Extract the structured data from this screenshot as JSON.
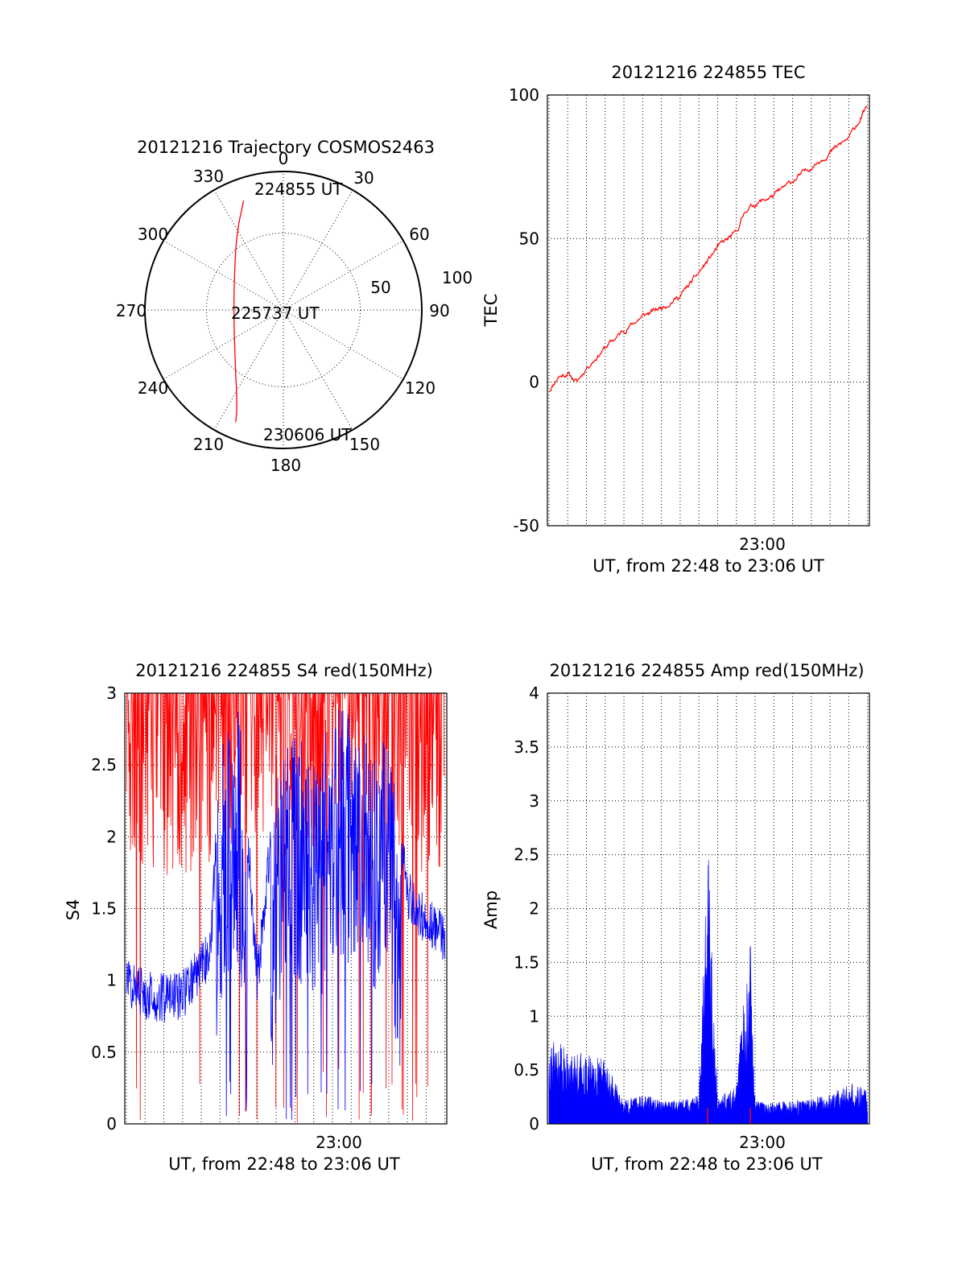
{
  "colors": {
    "red": "#ff0000",
    "blue": "#0000ff",
    "axis": "#000000",
    "background": "#ffffff"
  },
  "chart_data": [
    {
      "type": "polar",
      "title": "20121216 Trajectory COSMOS2463",
      "azimuth_labels": [
        "0",
        "30",
        "60",
        "90",
        "120",
        "150",
        "180",
        "210",
        "240",
        "270",
        "300",
        "330"
      ],
      "radial_tick_labels": [
        "50",
        "100"
      ],
      "annotations": [
        "224855 UT",
        "225737 UT",
        "230606 UT"
      ],
      "series": [
        {
          "color": "red",
          "points": [
            {
              "az": 340,
              "r": 84
            },
            {
              "az": 328,
              "r": 64
            },
            {
              "az": 300,
              "r": 41
            },
            {
              "az": 264,
              "r": 36
            },
            {
              "az": 222,
              "r": 52
            },
            {
              "az": 206,
              "r": 76
            },
            {
              "az": 203,
              "r": 88
            }
          ]
        }
      ]
    },
    {
      "type": "line",
      "title": "20121216 224855 TEC",
      "xlabel": "UT, from 22:48 to 23:06 UT",
      "ylabel": "TEC",
      "xlim": [
        "22:48:55",
        "23:06:06"
      ],
      "ylim": [
        -50,
        100
      ],
      "y_ticks": [
        "-50",
        "0",
        "50",
        "100"
      ],
      "x_ticks": [
        "23:00"
      ],
      "series": [
        {
          "color": "red",
          "x": [
            "22:49:00",
            "22:49:30",
            "22:50:00",
            "22:50:30",
            "22:51:00",
            "22:52:00",
            "22:53:00",
            "22:54:00",
            "22:55:00",
            "22:56:00",
            "22:57:00",
            "22:58:00",
            "22:59:00",
            "22:59:30",
            "23:00:00",
            "23:01:00",
            "23:02:00",
            "23:03:00",
            "23:04:00",
            "23:05:00",
            "23:06:00"
          ],
          "values": [
            -3,
            2,
            3,
            0,
            5,
            12,
            18,
            23,
            26,
            30,
            38,
            47,
            52,
            60,
            62,
            65,
            70,
            75,
            80,
            85,
            96
          ]
        }
      ]
    },
    {
      "type": "line",
      "title": "20121216 224855 S4 red(150MHz)",
      "xlabel": "UT, from 22:48 to 23:06 UT",
      "ylabel": "S4",
      "xlim": [
        "22:48:55",
        "23:06:06"
      ],
      "ylim": [
        0,
        3
      ],
      "y_ticks": [
        "0",
        "0.5",
        "1",
        "1.5",
        "2",
        "2.5",
        "3"
      ],
      "x_ticks": [
        "23:00"
      ],
      "series": [
        {
          "color": "blue",
          "x": [
            "22:49:00",
            "22:50:00",
            "22:51:00",
            "22:52:00",
            "22:53:00",
            "22:53:30",
            "22:54:00",
            "22:55:00",
            "22:56:00",
            "22:57:00",
            "22:58:00",
            "22:59:00",
            "23:00:00",
            "23:01:00",
            "23:02:00",
            "23:03:00",
            "23:04:00",
            "23:05:00",
            "23:06:00"
          ],
          "values": [
            1.0,
            0.9,
            0.88,
            0.9,
            1.1,
            1.2,
            2.6,
            2.9,
            1.0,
            2.4,
            2.8,
            2.5,
            2.9,
            2.9,
            2.7,
            2.8,
            1.6,
            1.4,
            1.3
          ]
        },
        {
          "color": "red",
          "x": [
            "22:49:00",
            "22:51:00",
            "22:53:00",
            "22:55:00",
            "22:57:00",
            "22:59:00",
            "23:01:00",
            "23:03:00",
            "23:05:00",
            "23:06:00"
          ],
          "values": [
            2.6,
            2.4,
            2.5,
            2.7,
            2.6,
            2.5,
            2.8,
            2.7,
            2.4,
            2.5
          ]
        }
      ]
    },
    {
      "type": "line",
      "title": "20121216 224855 Amp red(150MHz)",
      "xlabel": "UT, from 22:48 to 23:06 UT",
      "ylabel": "Amp",
      "xlim": [
        "22:48:55",
        "23:06:06"
      ],
      "ylim": [
        0,
        4
      ],
      "y_ticks": [
        "0",
        "0.5",
        "1",
        "1.5",
        "2",
        "2.5",
        "3",
        "3.5",
        "4"
      ],
      "x_ticks": [
        "23:00"
      ],
      "series": [
        {
          "color": "blue",
          "x": [
            "22:49:00",
            "22:50:00",
            "22:51:00",
            "22:52:00",
            "22:53:00",
            "22:54:00",
            "22:55:00",
            "22:56:00",
            "22:57:00",
            "22:57:30",
            "22:58:00",
            "22:59:00",
            "22:59:45",
            "23:00:00",
            "23:01:00",
            "23:02:00",
            "23:03:00",
            "23:04:00",
            "23:05:00",
            "23:06:00"
          ],
          "values": [
            0.75,
            0.65,
            0.6,
            0.55,
            0.2,
            0.25,
            0.2,
            0.2,
            0.25,
            2.4,
            0.2,
            0.35,
            1.65,
            0.2,
            0.18,
            0.2,
            0.22,
            0.25,
            0.35,
            0.3
          ]
        },
        {
          "color": "red",
          "x": [
            "22:57:28",
            "22:59:45"
          ],
          "values": [
            0.15,
            0.15
          ]
        }
      ]
    }
  ]
}
